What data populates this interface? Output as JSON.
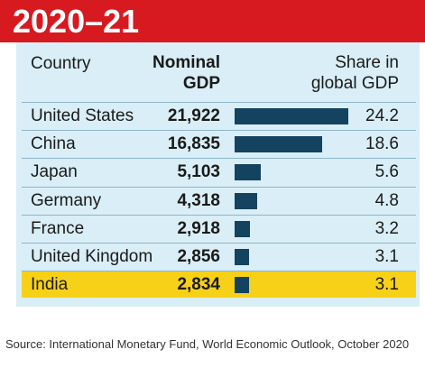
{
  "header": {
    "title": "2020–21"
  },
  "columns": {
    "country": "Country",
    "gdp_line1": "Nominal",
    "gdp_line2": "GDP",
    "share_line1": "Share in",
    "share_line2": "global GDP"
  },
  "colors": {
    "header_red": "#d71920",
    "panel_blue": "#d9eef6",
    "bar_navy": "#13435f",
    "highlight_yellow": "#f7d117"
  },
  "chart_data": {
    "type": "bar",
    "title": "2020–21",
    "categories": [
      "United States",
      "China",
      "Japan",
      "Germany",
      "France",
      "United Kingdom",
      "India"
    ],
    "nominal_gdp_labels": [
      "21,922",
      "16,835",
      "5,103",
      "4,318",
      "2,918",
      "2,856",
      "2,834"
    ],
    "series": [
      {
        "name": "Share in global GDP",
        "values": [
          24.2,
          18.6,
          5.6,
          4.8,
          3.2,
          3.1,
          3.1
        ]
      }
    ],
    "share_labels": [
      "24.2",
      "18.6",
      "5.6",
      "4.8",
      "3.2",
      "3.1",
      "3.1"
    ],
    "highlight": "India",
    "orientation": "horizontal"
  },
  "source": "Source: International Monetary Fund, World Economic Outlook, October 2020"
}
